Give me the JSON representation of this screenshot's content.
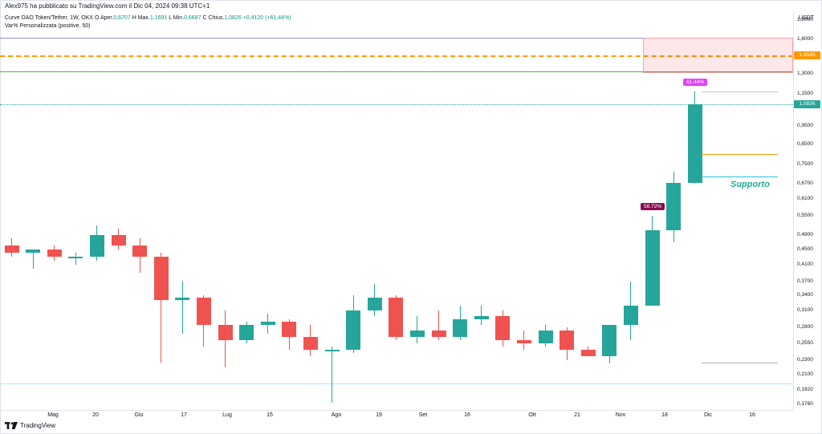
{
  "header": {
    "published_by": "Alex975 ha pubblicato su TradingView.com il Dic 04, 2024 09:38 UTC+1"
  },
  "legend": {
    "symbol": "Curve DAO Token/Tether, 1W, OKX",
    "open_label": "O",
    "open_prefix": "Aper.",
    "open": "0,6707",
    "high_label": "H",
    "high_prefix": "Max.",
    "high": "1,1691",
    "low_label": "L",
    "low_prefix": "Min.",
    "low": "0,6687",
    "close_label": "C",
    "close_prefix": "Chius.",
    "close": "1,0826",
    "change": "+0,4120 (+61,44%)",
    "indicator": "Var% Personalizzata (positive, 50)"
  },
  "price_axis": {
    "unit": "USDT",
    "ticks": [
      "1,8000",
      "1,6000",
      "1,4545",
      "1,3000",
      "1,1500",
      "1,0826",
      "0,9500",
      "0,8500",
      "0,7500",
      "0,6700",
      "0,6100",
      "0,5500",
      "0,4900",
      "0,4500",
      "0,4100",
      "0,3700",
      "0,3400",
      "0,3100",
      "0,2800",
      "0,2550",
      "0,2300",
      "0,2100",
      "0,1920",
      "0,1760"
    ],
    "current_price": "1,0826",
    "orange_line_price": "1,4545"
  },
  "time_axis": {
    "labels": [
      "Mag",
      "20",
      "Giu",
      "17",
      "Lug",
      "15",
      "Ago",
      "19",
      "Set",
      "16",
      "Ott",
      "21",
      "Nov",
      "18",
      "Dic",
      "16"
    ]
  },
  "annotations": {
    "support_label": "Supporto",
    "badge_top": "61.44%",
    "badge_mid": "58.72%"
  },
  "footer": {
    "brand": "TradingView"
  },
  "colors": {
    "up": "#26a69a",
    "down": "#ef5350",
    "purple_line": "#9c8ee8",
    "orange_line": "#ff9800",
    "green_line": "#4caf50",
    "support_line": "#26c6da",
    "badge_top": "#e040fb",
    "badge_mid": "#880e4f",
    "current_tag": "#26a69a"
  },
  "chart_data": {
    "type": "candlestick",
    "title": "",
    "candles": [
      {
        "x": "Apr 29",
        "o": 0.46,
        "h": 0.48,
        "l": 0.43,
        "c": 0.44
      },
      {
        "x": "May 06",
        "o": 0.44,
        "h": 0.45,
        "l": 0.4,
        "c": 0.45
      },
      {
        "x": "May 13",
        "o": 0.45,
        "h": 0.46,
        "l": 0.42,
        "c": 0.43
      },
      {
        "x": "May 20",
        "o": 0.43,
        "h": 0.44,
        "l": 0.41,
        "c": 0.43
      },
      {
        "x": "May 27",
        "o": 0.43,
        "h": 0.52,
        "l": 0.42,
        "c": 0.49
      },
      {
        "x": "Jun 03",
        "o": 0.49,
        "h": 0.51,
        "l": 0.45,
        "c": 0.46
      },
      {
        "x": "Jun 10",
        "o": 0.46,
        "h": 0.48,
        "l": 0.39,
        "c": 0.43
      },
      {
        "x": "Jun 17",
        "o": 0.43,
        "h": 0.44,
        "l": 0.2259,
        "c": 0.33
      },
      {
        "x": "Jun 24",
        "o": 0.33,
        "h": 0.37,
        "l": 0.27,
        "c": 0.335
      },
      {
        "x": "Jul 01",
        "o": 0.335,
        "h": 0.34,
        "l": 0.25,
        "c": 0.285
      },
      {
        "x": "Jul 08",
        "o": 0.285,
        "h": 0.31,
        "l": 0.22,
        "c": 0.26
      },
      {
        "x": "Jul 15",
        "o": 0.26,
        "h": 0.29,
        "l": 0.255,
        "c": 0.285
      },
      {
        "x": "Jul 22",
        "o": 0.285,
        "h": 0.305,
        "l": 0.27,
        "c": 0.29
      },
      {
        "x": "Jul 29",
        "o": 0.29,
        "h": 0.295,
        "l": 0.245,
        "c": 0.265
      },
      {
        "x": "Aug 05",
        "o": 0.265,
        "h": 0.285,
        "l": 0.235,
        "c": 0.245
      },
      {
        "x": "Aug 12",
        "o": 0.245,
        "h": 0.25,
        "l": 0.1776,
        "c": 0.245
      },
      {
        "x": "Aug 19",
        "o": 0.245,
        "h": 0.34,
        "l": 0.24,
        "c": 0.31
      },
      {
        "x": "Aug 26",
        "o": 0.31,
        "h": 0.365,
        "l": 0.3,
        "c": 0.335
      },
      {
        "x": "Sep 02",
        "o": 0.335,
        "h": 0.34,
        "l": 0.26,
        "c": 0.265
      },
      {
        "x": "Sep 09",
        "o": 0.265,
        "h": 0.3,
        "l": 0.255,
        "c": 0.275
      },
      {
        "x": "Sep 16",
        "o": 0.275,
        "h": 0.31,
        "l": 0.26,
        "c": 0.265
      },
      {
        "x": "Sep 23",
        "o": 0.265,
        "h": 0.32,
        "l": 0.26,
        "c": 0.295
      },
      {
        "x": "Sep 30",
        "o": 0.295,
        "h": 0.32,
        "l": 0.285,
        "c": 0.3
      },
      {
        "x": "Oct 07",
        "o": 0.3,
        "h": 0.31,
        "l": 0.25,
        "c": 0.26
      },
      {
        "x": "Oct 14",
        "o": 0.26,
        "h": 0.275,
        "l": 0.245,
        "c": 0.255
      },
      {
        "x": "Oct 21",
        "o": 0.255,
        "h": 0.285,
        "l": 0.25,
        "c": 0.275
      },
      {
        "x": "Oct 28",
        "o": 0.275,
        "h": 0.28,
        "l": 0.23,
        "c": 0.245
      },
      {
        "x": "Nov 04",
        "o": 0.245,
        "h": 0.25,
        "l": 0.235,
        "c": 0.235
      },
      {
        "x": "Nov 11",
        "o": 0.235,
        "h": 0.285,
        "l": 0.225,
        "c": 0.285
      },
      {
        "x": "Nov 18",
        "o": 0.285,
        "h": 0.37,
        "l": 0.26,
        "c": 0.32
      },
      {
        "x": "Nov 25",
        "o": 0.32,
        "h": 0.55,
        "l": 0.32,
        "c": 0.505
      },
      {
        "x": "Dec 02",
        "o": 0.505,
        "h": 0.72,
        "l": 0.47,
        "c": 0.6707
      },
      {
        "x": "Dec 09",
        "o": 0.6707,
        "h": 1.1691,
        "l": 0.6687,
        "c": 1.0826
      }
    ],
    "levels": [
      {
        "price": 1.62,
        "color": "#9c8ee8"
      },
      {
        "price": 1.4545,
        "color": "#ff9800",
        "dashed": true
      },
      {
        "price": 1.32,
        "color": "#4caf50"
      }
    ],
    "ylim": [
      0.17,
      1.9
    ],
    "scale": "log"
  }
}
